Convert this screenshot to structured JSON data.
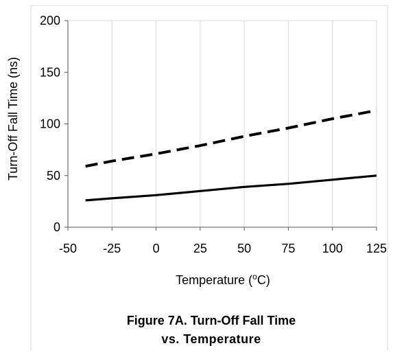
{
  "chart_data": {
    "type": "line",
    "xlabel": "Temperature (",
    "xlabel_sup": "o",
    "xlabel_unit": "C)",
    "ylabel": "Turn-Off Fall Time (ns)",
    "caption_line1": "Figure 7A. Turn-Off Fall Time",
    "caption_line2": "vs. Temperature",
    "xlim": [
      -50,
      125
    ],
    "ylim": [
      0,
      200
    ],
    "x_ticks": [
      "-50",
      "-25",
      "0",
      "25",
      "50",
      "75",
      "100",
      "125"
    ],
    "y_ticks": [
      "0",
      "50",
      "100",
      "150",
      "200"
    ],
    "grid": "vertical",
    "series": [
      {
        "style": "dashed",
        "color": "#000000",
        "x": [
          -40,
          -25,
          0,
          25,
          50,
          75,
          100,
          125
        ],
        "y": [
          59,
          64,
          71,
          79,
          88,
          96,
          105,
          113
        ]
      },
      {
        "style": "solid",
        "color": "#000000",
        "x": [
          -40,
          -25,
          0,
          25,
          50,
          75,
          100,
          125
        ],
        "y": [
          26,
          28,
          31,
          35,
          39,
          42,
          46,
          50
        ]
      }
    ]
  }
}
